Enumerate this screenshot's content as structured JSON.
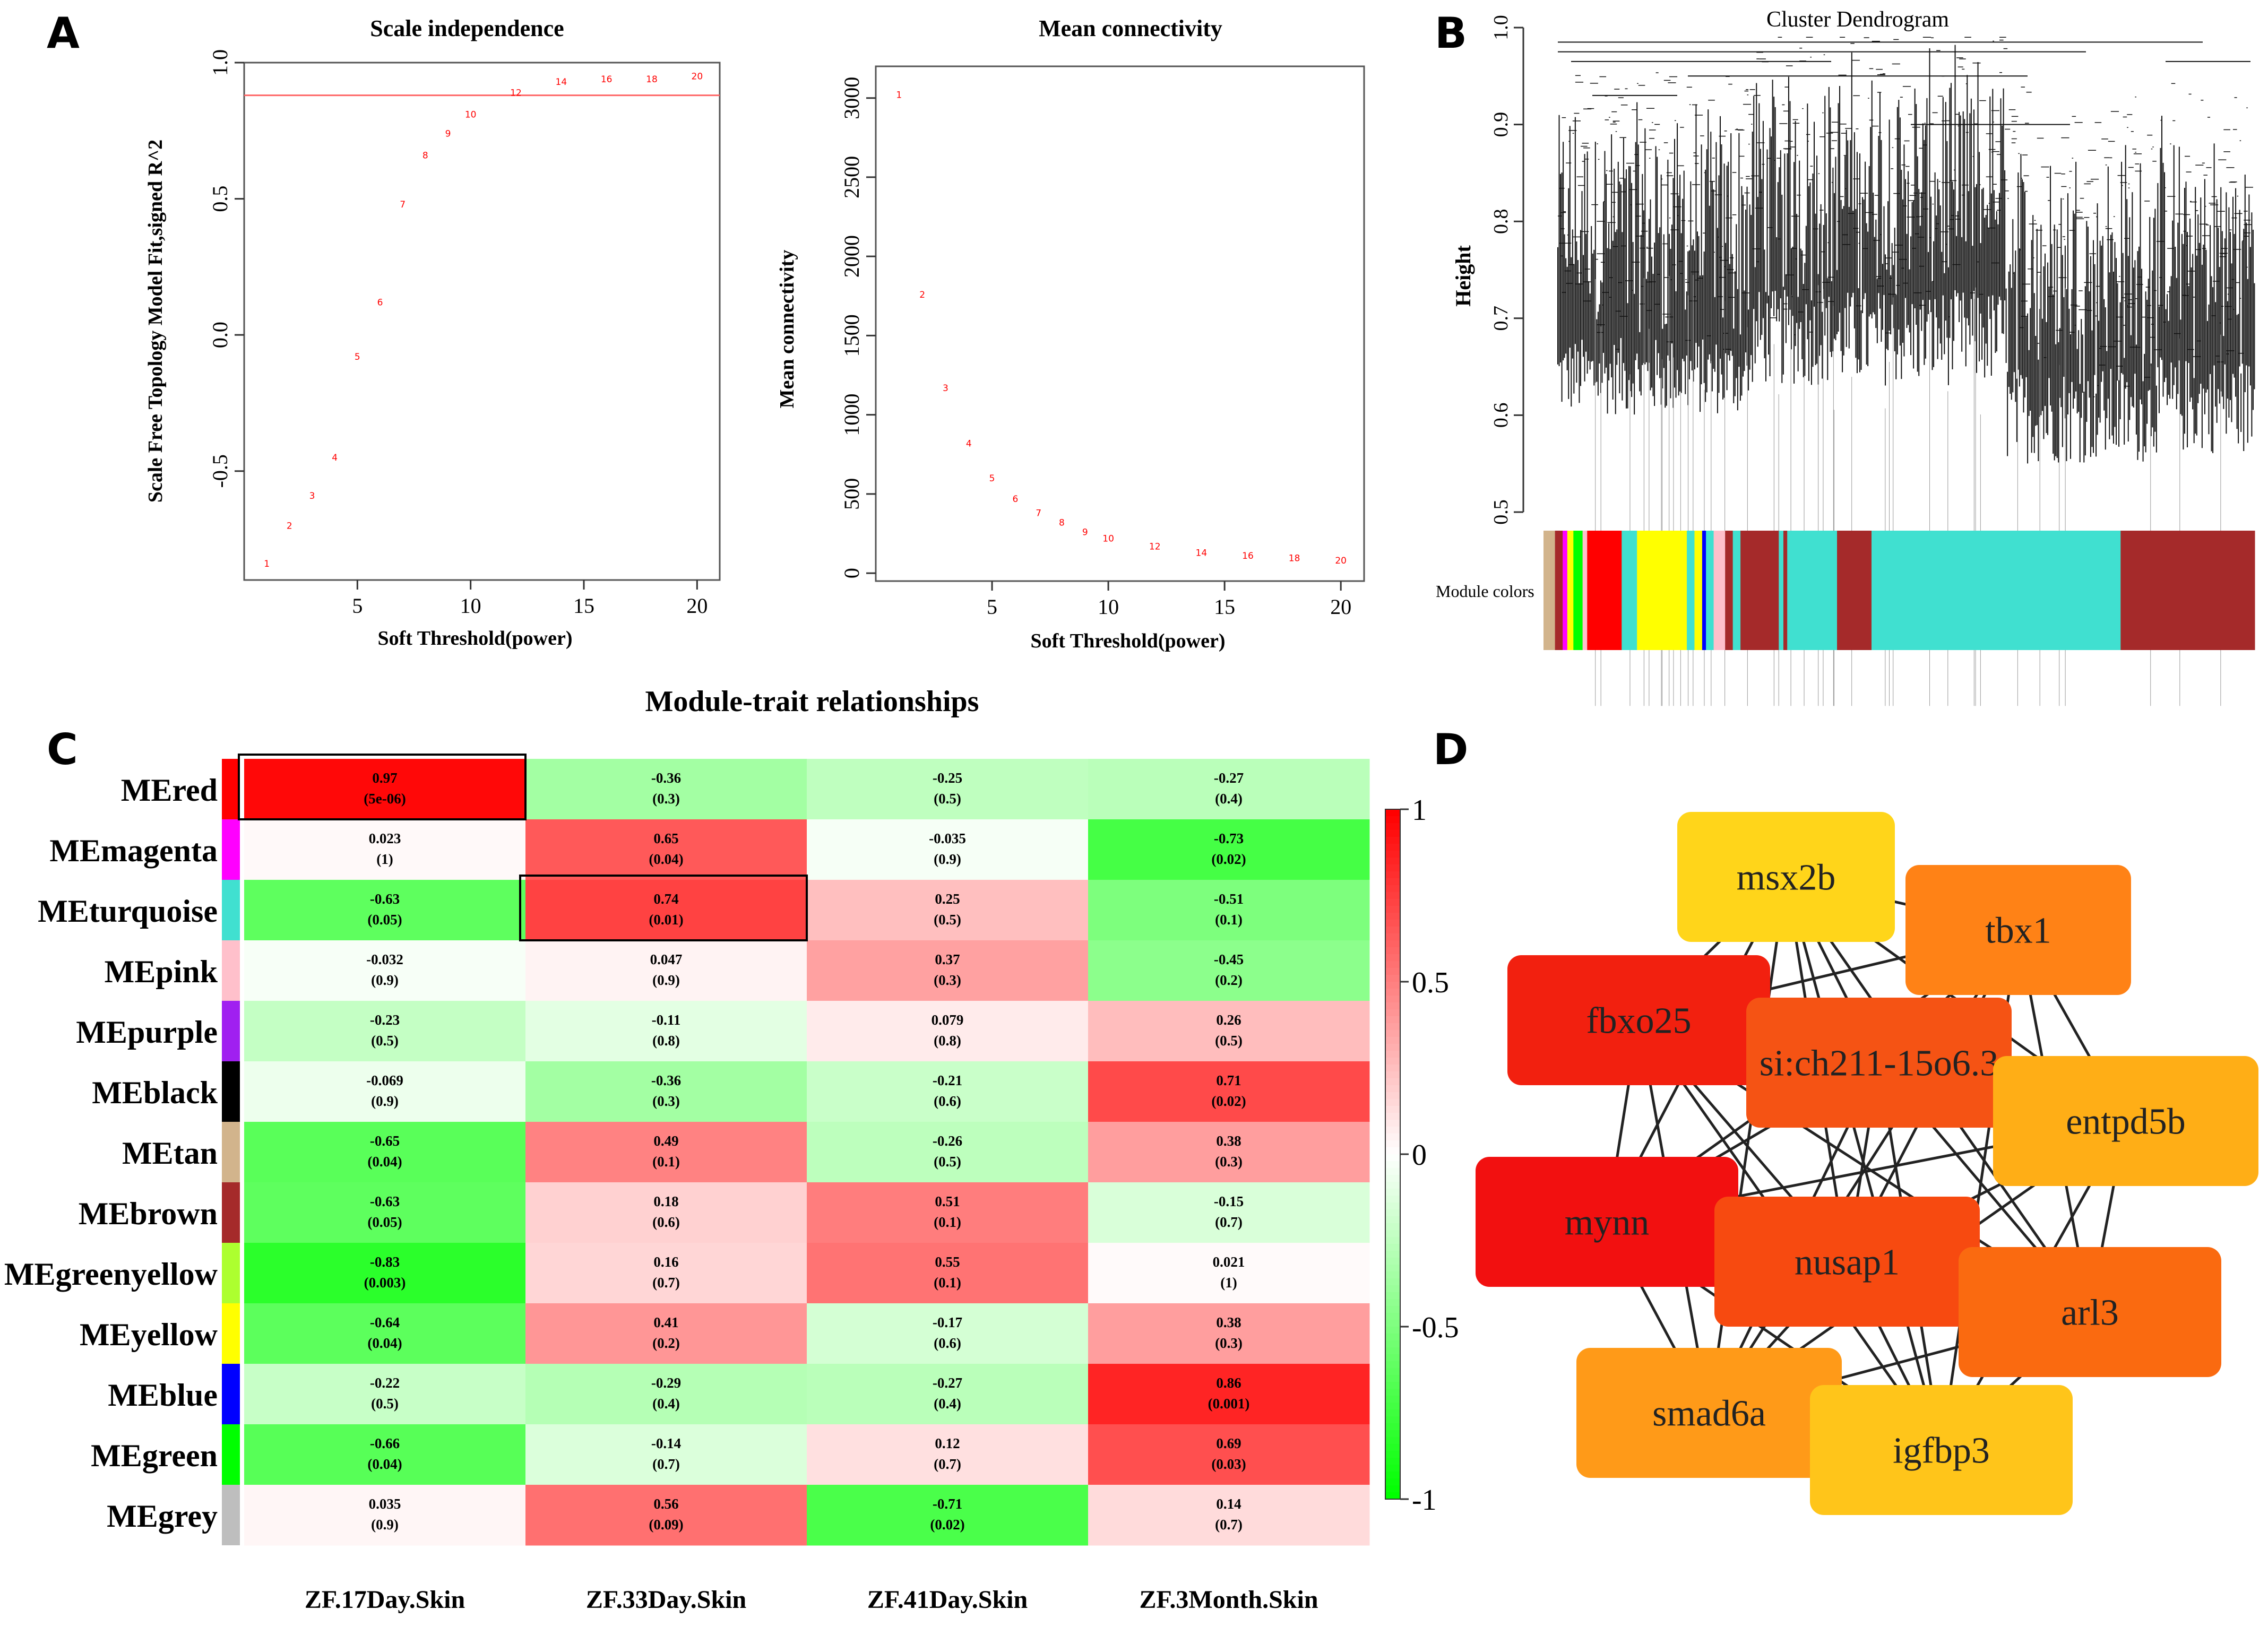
{
  "panels": {
    "A": "A",
    "B": "B",
    "C": "C",
    "D": "D"
  },
  "colors": {
    "red": "#ff0000",
    "green": "#00ff00",
    "white": "#ffffff",
    "threshold_line": "#ff6666",
    "point_label": "#ff0000"
  },
  "chart_data": [
    {
      "id": "scale_independence",
      "type": "scatter",
      "title": "Scale independence",
      "xlabel": "Soft Threshold(power)",
      "ylabel": "Scale Free Topology Model Fit,signed R^2",
      "xlim": [
        0,
        21
      ],
      "ylim": [
        -0.9,
        1.0
      ],
      "xticks": [
        5,
        10,
        15,
        20
      ],
      "yticks": [
        -0.5,
        0.0,
        0.5,
        1.0
      ],
      "ytick_labels": [
        "-0.5",
        "0.0",
        "0.5",
        "1.0"
      ],
      "hline": 0.88,
      "x": [
        1,
        2,
        3,
        4,
        5,
        6,
        7,
        8,
        9,
        10,
        12,
        14,
        16,
        18,
        20
      ],
      "y": [
        -0.84,
        -0.7,
        -0.59,
        -0.45,
        -0.08,
        0.12,
        0.48,
        0.66,
        0.74,
        0.81,
        0.89,
        0.93,
        0.94,
        0.94,
        0.95
      ],
      "labels": [
        "1",
        "2",
        "3",
        "4",
        "5",
        "6",
        "7",
        "8",
        "9",
        "10",
        "12",
        "14",
        "16",
        "18",
        "20"
      ]
    },
    {
      "id": "mean_connectivity",
      "type": "scatter",
      "title": "Mean connectivity",
      "xlabel": "Soft Threshold(power)",
      "ylabel": "Mean connectivity",
      "xlim": [
        0,
        21
      ],
      "ylim": [
        -50,
        3200
      ],
      "xticks": [
        5,
        10,
        15,
        20
      ],
      "yticks": [
        0,
        500,
        1000,
        1500,
        2000,
        2500,
        3000
      ],
      "ytick_labels": [
        "0",
        "500",
        "1000",
        "1500",
        "2000",
        "2500",
        "3000"
      ],
      "x": [
        1,
        2,
        3,
        4,
        5,
        6,
        7,
        8,
        9,
        10,
        12,
        14,
        16,
        18,
        20
      ],
      "y": [
        3020,
        1760,
        1170,
        820,
        600,
        470,
        380,
        320,
        260,
        220,
        170,
        130,
        110,
        95,
        80
      ],
      "labels": [
        "1",
        "2",
        "3",
        "4",
        "5",
        "6",
        "7",
        "8",
        "9",
        "10",
        "12",
        "14",
        "16",
        "18",
        "20"
      ]
    },
    {
      "id": "cluster_dendrogram",
      "type": "dendrogram",
      "title": "Cluster Dendrogram",
      "ylabel": "Height",
      "ylim": [
        0.5,
        1.0
      ],
      "yticks": [
        0.5,
        0.6,
        0.7,
        0.8,
        0.9,
        1.0
      ],
      "ytick_labels": [
        "0.5",
        "0.6",
        "0.7",
        "0.8",
        "0.9",
        "1.0"
      ],
      "module_colors_label": "Module colors",
      "module_color_segments": [
        {
          "color": "#d2b48c",
          "width": 1.5
        },
        {
          "color": "#a52a2a",
          "width": 1
        },
        {
          "color": "#ff00ff",
          "width": 0.6
        },
        {
          "color": "#ffff00",
          "width": 0.8
        },
        {
          "color": "#00ff00",
          "width": 1.2
        },
        {
          "color": "#ffc0cb",
          "width": 0.6
        },
        {
          "color": "#ff0000",
          "width": 4.5
        },
        {
          "color": "#40e0d0",
          "width": 2
        },
        {
          "color": "#ffff00",
          "width": 6.5
        },
        {
          "color": "#40e0d0",
          "width": 1
        },
        {
          "color": "#ffff00",
          "width": 1
        },
        {
          "color": "#0000ff",
          "width": 0.5
        },
        {
          "color": "#40e0d0",
          "width": 1
        },
        {
          "color": "#ffc0cb",
          "width": 1.5
        },
        {
          "color": "#a52a2a",
          "width": 1
        },
        {
          "color": "#40e0d0",
          "width": 1
        },
        {
          "color": "#a52a2a",
          "width": 5
        },
        {
          "color": "#40e0d0",
          "width": 0.6
        },
        {
          "color": "#a52a2a",
          "width": 0.5
        },
        {
          "color": "#40e0d0",
          "width": 6.5
        },
        {
          "color": "#a52a2a",
          "width": 4.5
        },
        {
          "color": "#40e0d0",
          "width": 32.5
        },
        {
          "color": "#a52a2a",
          "width": 17.5
        }
      ]
    },
    {
      "id": "module_trait",
      "type": "heatmap",
      "title": "Module-trait relationships",
      "columns": [
        "ZF.17Day.Skin",
        "ZF.33Day.Skin",
        "ZF.41Day.Skin",
        "ZF.3Month.Skin"
      ],
      "rows": [
        {
          "name": "MEred",
          "color": "#ff0000",
          "values": [
            0.97,
            -0.36,
            -0.25,
            -0.27
          ],
          "pvalues": [
            "(5e-06)",
            "(0.3)",
            "(0.5)",
            "(0.4)"
          ],
          "labels": [
            "0.97",
            "-0.36",
            "-0.25",
            "-0.27"
          ]
        },
        {
          "name": "MEmagenta",
          "color": "#ff00ff",
          "values": [
            0.023,
            0.65,
            -0.035,
            -0.73
          ],
          "pvalues": [
            "(1)",
            "(0.04)",
            "(0.9)",
            "(0.02)"
          ],
          "labels": [
            "0.023",
            "0.65",
            "-0.035",
            "-0.73"
          ]
        },
        {
          "name": "MEturquoise",
          "color": "#40e0d0",
          "values": [
            -0.63,
            0.74,
            0.25,
            -0.51
          ],
          "pvalues": [
            "(0.05)",
            "(0.01)",
            "(0.5)",
            "(0.1)"
          ],
          "labels": [
            "-0.63",
            "0.74",
            "0.25",
            "-0.51"
          ]
        },
        {
          "name": "MEpink",
          "color": "#ffc0cb",
          "values": [
            -0.032,
            0.047,
            0.37,
            -0.45
          ],
          "pvalues": [
            "(0.9)",
            "(0.9)",
            "(0.3)",
            "(0.2)"
          ],
          "labels": [
            "-0.032",
            "0.047",
            "0.37",
            "-0.45"
          ]
        },
        {
          "name": "MEpurple",
          "color": "#a020f0",
          "values": [
            -0.23,
            -0.11,
            0.079,
            0.26
          ],
          "pvalues": [
            "(0.5)",
            "(0.8)",
            "(0.8)",
            "(0.5)"
          ],
          "labels": [
            "-0.23",
            "-0.11",
            "0.079",
            "0.26"
          ]
        },
        {
          "name": "MEblack",
          "color": "#000000",
          "values": [
            -0.069,
            -0.36,
            -0.21,
            0.71
          ],
          "pvalues": [
            "(0.9)",
            "(0.3)",
            "(0.6)",
            "(0.02)"
          ],
          "labels": [
            "-0.069",
            "-0.36",
            "-0.21",
            "0.71"
          ]
        },
        {
          "name": "MEtan",
          "color": "#d2b48c",
          "values": [
            -0.65,
            0.49,
            -0.26,
            0.38
          ],
          "pvalues": [
            "(0.04)",
            "(0.1)",
            "(0.5)",
            "(0.3)"
          ],
          "labels": [
            "-0.65",
            "0.49",
            "-0.26",
            "0.38"
          ]
        },
        {
          "name": "MEbrown",
          "color": "#a52a2a",
          "values": [
            -0.63,
            0.18,
            0.51,
            -0.15
          ],
          "pvalues": [
            "(0.05)",
            "(0.6)",
            "(0.1)",
            "(0.7)"
          ],
          "labels": [
            "-0.63",
            "0.18",
            "0.51",
            "-0.15"
          ]
        },
        {
          "name": "MEgreenyellow",
          "color": "#adff2f",
          "values": [
            -0.83,
            0.16,
            0.55,
            0.021
          ],
          "pvalues": [
            "(0.003)",
            "(0.7)",
            "(0.1)",
            "(1)"
          ],
          "labels": [
            "-0.83",
            "0.16",
            "0.55",
            "0.021"
          ]
        },
        {
          "name": "MEyellow",
          "color": "#ffff00",
          "values": [
            -0.64,
            0.41,
            -0.17,
            0.38
          ],
          "pvalues": [
            "(0.04)",
            "(0.2)",
            "(0.6)",
            "(0.3)"
          ],
          "labels": [
            "-0.64",
            "0.41",
            "-0.17",
            "0.38"
          ]
        },
        {
          "name": "MEblue",
          "color": "#0000ff",
          "values": [
            -0.22,
            -0.29,
            -0.27,
            0.86
          ],
          "pvalues": [
            "(0.5)",
            "(0.4)",
            "(0.4)",
            "(0.001)"
          ],
          "labels": [
            "-0.22",
            "-0.29",
            "-0.27",
            "0.86"
          ]
        },
        {
          "name": "MEgreen",
          "color": "#00ff00",
          "values": [
            -0.66,
            -0.14,
            0.12,
            0.69
          ],
          "pvalues": [
            "(0.04)",
            "(0.7)",
            "(0.7)",
            "(0.03)"
          ],
          "labels": [
            "-0.66",
            "-0.14",
            "0.12",
            "0.69"
          ]
        },
        {
          "name": "MEgrey",
          "color": "#bebebe",
          "values": [
            0.035,
            0.56,
            -0.71,
            0.14
          ],
          "pvalues": [
            "(0.9)",
            "(0.09)",
            "(0.02)",
            "(0.7)"
          ],
          "labels": [
            "0.035",
            "0.56",
            "-0.71",
            "0.14"
          ]
        }
      ],
      "highlighted_cells": [
        {
          "row": 0,
          "col": 0
        },
        {
          "row": 2,
          "col": 1
        }
      ],
      "colorbar": {
        "range": [
          -1,
          1
        ],
        "ticks": [
          1,
          0.5,
          0,
          -0.5,
          -1
        ],
        "tick_labels": [
          "1",
          "0.5",
          "0",
          "-0.5",
          "-1"
        ]
      }
    },
    {
      "id": "hub_network",
      "type": "network",
      "nodes": [
        {
          "id": "msx2b",
          "label": "msx2b",
          "color": "#ffd51a"
        },
        {
          "id": "tbx1",
          "label": "tbx1",
          "color": "#ff8216"
        },
        {
          "id": "fbxo25",
          "label": "fbxo25",
          "color": "#f2200f"
        },
        {
          "id": "si",
          "label": "si:ch211-15o6.3",
          "color": "#f55314"
        },
        {
          "id": "entpd5b",
          "label": "entpd5b",
          "color": "#ffae16"
        },
        {
          "id": "mynn",
          "label": "mynn",
          "color": "#f21010"
        },
        {
          "id": "nusap1",
          "label": "nusap1",
          "color": "#f74a10"
        },
        {
          "id": "arl3",
          "label": "arl3",
          "color": "#fa6a10"
        },
        {
          "id": "smad6a",
          "label": "smad6a",
          "color": "#ff9a18"
        },
        {
          "id": "igfbp3",
          "label": "igfbp3",
          "color": "#ffc51a"
        }
      ],
      "edges": [
        [
          "msx2b",
          "tbx1"
        ],
        [
          "msx2b",
          "fbxo25"
        ],
        [
          "msx2b",
          "si"
        ],
        [
          "msx2b",
          "entpd5b"
        ],
        [
          "msx2b",
          "mynn"
        ],
        [
          "msx2b",
          "nusap1"
        ],
        [
          "msx2b",
          "arl3"
        ],
        [
          "msx2b",
          "smad6a"
        ],
        [
          "msx2b",
          "igfbp3"
        ],
        [
          "tbx1",
          "fbxo25"
        ],
        [
          "tbx1",
          "si"
        ],
        [
          "tbx1",
          "entpd5b"
        ],
        [
          "tbx1",
          "mynn"
        ],
        [
          "tbx1",
          "nusap1"
        ],
        [
          "tbx1",
          "arl3"
        ],
        [
          "tbx1",
          "smad6a"
        ],
        [
          "tbx1",
          "igfbp3"
        ],
        [
          "fbxo25",
          "si"
        ],
        [
          "fbxo25",
          "entpd5b"
        ],
        [
          "fbxo25",
          "mynn"
        ],
        [
          "fbxo25",
          "nusap1"
        ],
        [
          "fbxo25",
          "arl3"
        ],
        [
          "fbxo25",
          "smad6a"
        ],
        [
          "fbxo25",
          "igfbp3"
        ],
        [
          "si",
          "entpd5b"
        ],
        [
          "si",
          "mynn"
        ],
        [
          "si",
          "nusap1"
        ],
        [
          "si",
          "arl3"
        ],
        [
          "si",
          "smad6a"
        ],
        [
          "si",
          "igfbp3"
        ],
        [
          "entpd5b",
          "mynn"
        ],
        [
          "entpd5b",
          "nusap1"
        ],
        [
          "entpd5b",
          "arl3"
        ],
        [
          "entpd5b",
          "smad6a"
        ],
        [
          "entpd5b",
          "igfbp3"
        ],
        [
          "mynn",
          "nusap1"
        ],
        [
          "mynn",
          "arl3"
        ],
        [
          "mynn",
          "smad6a"
        ],
        [
          "mynn",
          "igfbp3"
        ],
        [
          "nusap1",
          "arl3"
        ],
        [
          "nusap1",
          "smad6a"
        ],
        [
          "nusap1",
          "igfbp3"
        ],
        [
          "arl3",
          "smad6a"
        ],
        [
          "arl3",
          "igfbp3"
        ],
        [
          "smad6a",
          "igfbp3"
        ]
      ]
    }
  ]
}
